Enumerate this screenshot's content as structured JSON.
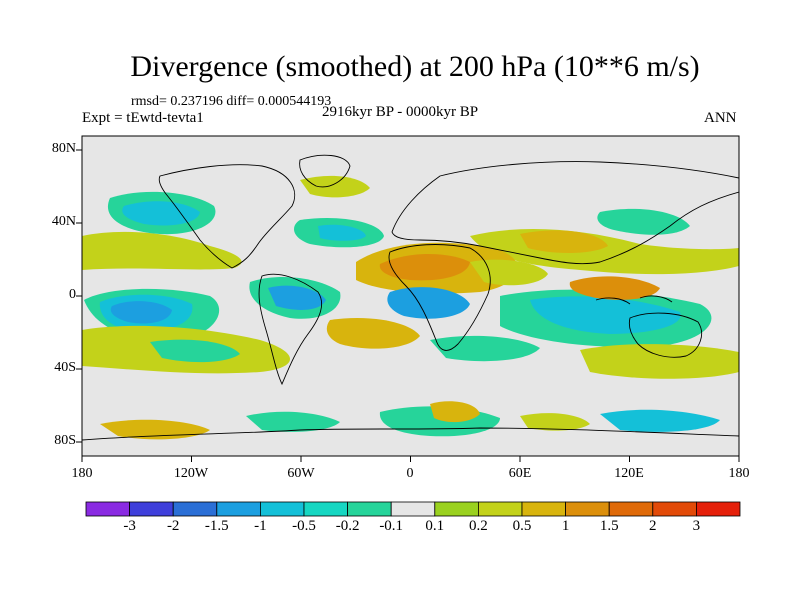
{
  "title": "Divergence (smoothed) at 200 hPa (10**6 m/s)",
  "stats": "rmsd= 0.237196 diff= 0.000544193",
  "experiment": "Expt = tEwtd-tevta1",
  "period": "2916kyr BP - 0000kyr BP",
  "season": "ANN",
  "axes": {
    "y_ticks": [
      "80N",
      "40N",
      "0",
      "40S",
      "80S"
    ],
    "x_ticks": [
      "180",
      "120W",
      "60W",
      "0",
      "60E",
      "120E",
      "180"
    ]
  },
  "colorbar": {
    "labels": [
      "-3",
      "-2",
      "-1.5",
      "-1",
      "-0.5",
      "-0.2",
      "-0.1",
      "0.1",
      "0.2",
      "0.5",
      "1",
      "1.5",
      "2",
      "3"
    ],
    "colors": [
      "#8a2be2",
      "#3f3fdb",
      "#2b6fd6",
      "#1c9fe0",
      "#14c0d8",
      "#16d7c2",
      "#26d49a",
      "#e6e6e6",
      "#9ad11f",
      "#c3d21a",
      "#d8b40d",
      "#dc8f0b",
      "#df6a09",
      "#e24a08",
      "#e5200a"
    ]
  },
  "map": {
    "background": "#e6e6e6",
    "coast_color": "#000000"
  }
}
